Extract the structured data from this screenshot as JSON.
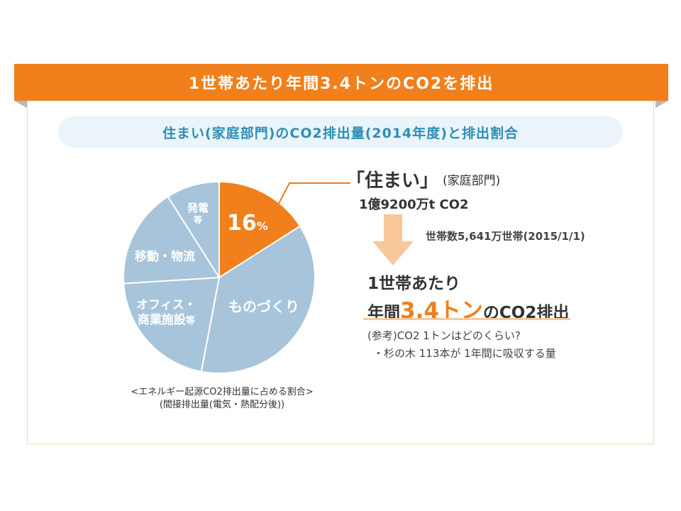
{
  "banner": {
    "title": "1世帯あたり年間3.4トンのCO2を排出"
  },
  "subtitle": "住まい(家庭部門)のCO2排出量(2014年度)と排出割合",
  "colors": {
    "accent": "#f07f1c",
    "pie_blue": "#a7c4da",
    "subtitle_text": "#2c8fb5",
    "pill_bg": "#eaf4fa"
  },
  "chart_data": {
    "type": "pie",
    "slices": [
      {
        "label": "住まい",
        "value": 16,
        "display": "16",
        "unit": "%",
        "color": "#f07f1c"
      },
      {
        "label": "ものづくり",
        "value": 37,
        "color": "#a7c4da"
      },
      {
        "label": "オフィス・商業施設等",
        "value": 21,
        "color": "#a7c4da"
      },
      {
        "label": "移動・物流",
        "value": 17,
        "color": "#a7c4da"
      },
      {
        "label": "発電等",
        "value": 9,
        "color": "#a7c4da"
      }
    ],
    "labels": {
      "residential": "16",
      "residential_unit": "%",
      "manufacturing": "ものづくり",
      "office_line1": "オフィス・",
      "office_line2": "商業施設",
      "office_suffix": "等",
      "transport": "移動・物流",
      "power_line1": "発電",
      "power_line2": "等"
    },
    "caption_line1": "<エネルギー起源CO2排出量に占める割合>",
    "caption_line2": "(間接排出量(電気・熱配分後))"
  },
  "info": {
    "home_title": "「住まい」",
    "home_sub": "(家庭部門)",
    "amount": "1億9200万t CO2",
    "households": "世帯数5,641万世帯(2015/1/1)",
    "result_line1": "1世帯あたり",
    "result_prefix": "年間",
    "result_value": "3.4トン",
    "result_suffix": "のCO2排出",
    "ref_line1": "(参考)CO2 1トンはどのくらい?",
    "ref_line2": "・杉の木 113本が 1年間に吸収する量"
  }
}
